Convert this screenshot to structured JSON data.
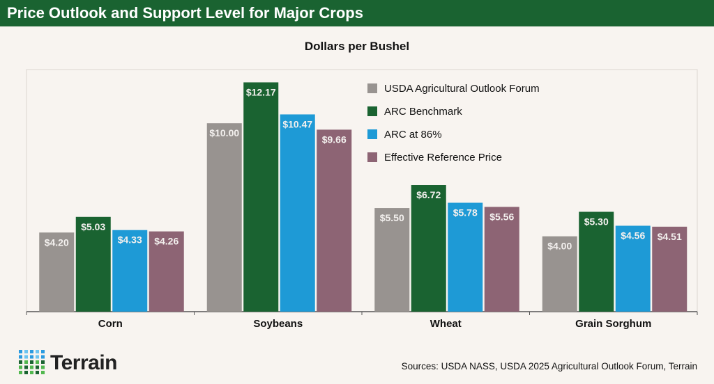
{
  "title": "Price Outlook and Support Level for Major Crops",
  "brand": "Terrain",
  "sources": "Sources: USDA NASS, USDA 2025 Agricultural Outlook Forum, Terrain",
  "chart_data": {
    "type": "bar",
    "title": "Dollars per Bushel",
    "categories": [
      "Corn",
      "Soybeans",
      "Wheat",
      "Grain Sorghum"
    ],
    "series": [
      {
        "name": "USDA Agricultural Outlook Forum",
        "color": "#989390",
        "values": [
          4.2,
          10.0,
          5.5,
          4.0
        ],
        "labels": [
          "$4.20",
          "$10.00",
          "$5.50",
          "$4.00"
        ]
      },
      {
        "name": "ARC Benchmark",
        "color": "#1a6331",
        "values": [
          5.03,
          12.17,
          6.72,
          5.3
        ],
        "labels": [
          "$5.03",
          "$12.17",
          "$6.72",
          "$5.30"
        ]
      },
      {
        "name": "ARC at 86%",
        "color": "#1e9ad6",
        "values": [
          4.33,
          10.47,
          5.78,
          4.56
        ],
        "labels": [
          "$4.33",
          "$10.47",
          "$5.78",
          "$4.56"
        ]
      },
      {
        "name": "Effective Reference Price",
        "color": "#8d6474",
        "values": [
          4.26,
          9.66,
          5.56,
          4.51
        ],
        "labels": [
          "$4.26",
          "$9.66",
          "$5.56",
          "$4.51"
        ]
      }
    ],
    "ylim": [
      0,
      12.85
    ],
    "legend": "top-right",
    "grid": false
  }
}
